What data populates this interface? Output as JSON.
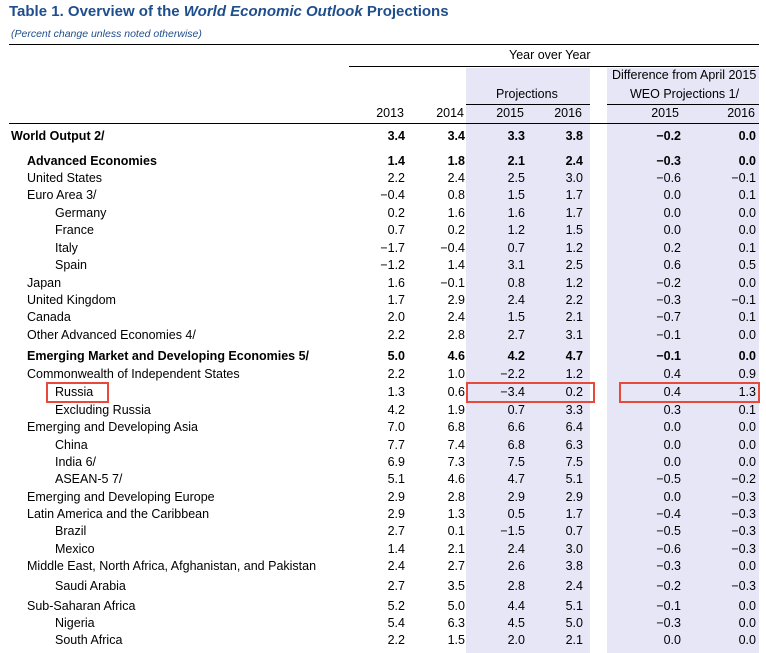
{
  "title": {
    "prefix": "Table 1. Overview of the ",
    "italic": "World Economic Outlook",
    "suffix": " Projections"
  },
  "subtitle": "(Percent change unless noted otherwise)",
  "header": {
    "group": "Year over Year",
    "projections": "Projections",
    "diff_line1": "Difference from April 2015",
    "diff_line2": "WEO Projections 1/",
    "years": [
      "2013",
      "2014",
      "2015",
      "2016",
      "2015",
      "2016"
    ]
  },
  "rows": [
    {
      "label": "World Output 2/",
      "indent": 0,
      "bold": true,
      "v": [
        "3.4",
        "3.4",
        "3.3",
        "3.8",
        "−0.2",
        "0.0"
      ]
    },
    {
      "label": "Advanced Economies",
      "indent": 1,
      "bold": true,
      "v": [
        "1.4",
        "1.8",
        "2.1",
        "2.4",
        "−0.3",
        "0.0"
      ]
    },
    {
      "label": "United States",
      "indent": 1,
      "bold": false,
      "v": [
        "2.2",
        "2.4",
        "2.5",
        "3.0",
        "−0.6",
        "−0.1"
      ]
    },
    {
      "label": "Euro Area 3/",
      "indent": 1,
      "bold": false,
      "v": [
        "−0.4",
        "0.8",
        "1.5",
        "1.7",
        "0.0",
        "0.1"
      ]
    },
    {
      "label": "Germany",
      "indent": 2,
      "bold": false,
      "v": [
        "0.2",
        "1.6",
        "1.6",
        "1.7",
        "0.0",
        "0.0"
      ]
    },
    {
      "label": "France",
      "indent": 2,
      "bold": false,
      "v": [
        "0.7",
        "0.2",
        "1.2",
        "1.5",
        "0.0",
        "0.0"
      ]
    },
    {
      "label": "Italy",
      "indent": 2,
      "bold": false,
      "v": [
        "−1.7",
        "−0.4",
        "0.7",
        "1.2",
        "0.2",
        "0.1"
      ]
    },
    {
      "label": "Spain",
      "indent": 2,
      "bold": false,
      "v": [
        "−1.2",
        "1.4",
        "3.1",
        "2.5",
        "0.6",
        "0.5"
      ]
    },
    {
      "label": "Japan",
      "indent": 1,
      "bold": false,
      "v": [
        "1.6",
        "−0.1",
        "0.8",
        "1.2",
        "−0.2",
        "0.0"
      ]
    },
    {
      "label": "United Kingdom",
      "indent": 1,
      "bold": false,
      "v": [
        "1.7",
        "2.9",
        "2.4",
        "2.2",
        "−0.3",
        "−0.1"
      ]
    },
    {
      "label": "Canada",
      "indent": 1,
      "bold": false,
      "v": [
        "2.0",
        "2.4",
        "1.5",
        "2.1",
        "−0.7",
        "0.1"
      ]
    },
    {
      "label": "Other Advanced Economies 4/",
      "indent": 1,
      "bold": false,
      "v": [
        "2.2",
        "2.8",
        "2.7",
        "3.1",
        "−0.1",
        "0.0"
      ]
    },
    {
      "label": "Emerging Market and Developing Economies 5/",
      "indent": 1,
      "bold": true,
      "v": [
        "5.0",
        "4.6",
        "4.2",
        "4.7",
        "−0.1",
        "0.0"
      ]
    },
    {
      "label": "Commonwealth of Independent States",
      "indent": 1,
      "bold": false,
      "v": [
        "2.2",
        "1.0",
        "−2.2",
        "1.2",
        "0.4",
        "0.9"
      ]
    },
    {
      "label": "Russia",
      "indent": 2,
      "bold": false,
      "v": [
        "1.3",
        "0.6",
        "−3.4",
        "0.2",
        "0.4",
        "1.3"
      ],
      "highlight": true
    },
    {
      "label": "Excluding Russia",
      "indent": 2,
      "bold": false,
      "v": [
        "4.2",
        "1.9",
        "0.7",
        "3.3",
        "0.3",
        "0.1"
      ]
    },
    {
      "label": "Emerging and Developing Asia",
      "indent": 1,
      "bold": false,
      "v": [
        "7.0",
        "6.8",
        "6.6",
        "6.4",
        "0.0",
        "0.0"
      ]
    },
    {
      "label": "China",
      "indent": 2,
      "bold": false,
      "v": [
        "7.7",
        "7.4",
        "6.8",
        "6.3",
        "0.0",
        "0.0"
      ]
    },
    {
      "label": "India 6/",
      "indent": 2,
      "bold": false,
      "v": [
        "6.9",
        "7.3",
        "7.5",
        "7.5",
        "0.0",
        "0.0"
      ]
    },
    {
      "label": "ASEAN-5 7/",
      "indent": 2,
      "bold": false,
      "v": [
        "5.1",
        "4.6",
        "4.7",
        "5.1",
        "−0.5",
        "−0.2"
      ]
    },
    {
      "label": "Emerging and Developing Europe",
      "indent": 1,
      "bold": false,
      "v": [
        "2.9",
        "2.8",
        "2.9",
        "2.9",
        "0.0",
        "−0.3"
      ]
    },
    {
      "label": "Latin America and the Caribbean",
      "indent": 1,
      "bold": false,
      "v": [
        "2.9",
        "1.3",
        "0.5",
        "1.7",
        "−0.4",
        "−0.3"
      ]
    },
    {
      "label": "Brazil",
      "indent": 2,
      "bold": false,
      "v": [
        "2.7",
        "0.1",
        "−1.5",
        "0.7",
        "−0.5",
        "−0.3"
      ]
    },
    {
      "label": "Mexico",
      "indent": 2,
      "bold": false,
      "v": [
        "1.4",
        "2.1",
        "2.4",
        "3.0",
        "−0.6",
        "−0.3"
      ]
    },
    {
      "label": "Middle East, North Africa, Afghanistan, and Pakistan",
      "indent": 1,
      "bold": false,
      "v": [
        "2.4",
        "2.7",
        "2.6",
        "3.8",
        "−0.3",
        "0.0"
      ]
    },
    {
      "label": "Saudi Arabia",
      "indent": 2,
      "bold": false,
      "v": [
        "2.7",
        "3.5",
        "2.8",
        "2.4",
        "−0.2",
        "−0.3"
      ]
    },
    {
      "label": "Sub-Saharan Africa",
      "indent": 1,
      "bold": false,
      "v": [
        "5.2",
        "5.0",
        "4.4",
        "5.1",
        "−0.1",
        "0.0"
      ]
    },
    {
      "label": "Nigeria",
      "indent": 2,
      "bold": false,
      "v": [
        "5.4",
        "6.3",
        "4.5",
        "5.0",
        "−0.3",
        "0.0"
      ]
    },
    {
      "label": "South Africa",
      "indent": 2,
      "bold": false,
      "v": [
        "2.2",
        "1.5",
        "2.0",
        "2.1",
        "0.0",
        "0.0"
      ]
    }
  ],
  "colors": {
    "title": "#1f4e8c",
    "shade": "#e7e6f7",
    "highlight": "#e64a3b"
  }
}
